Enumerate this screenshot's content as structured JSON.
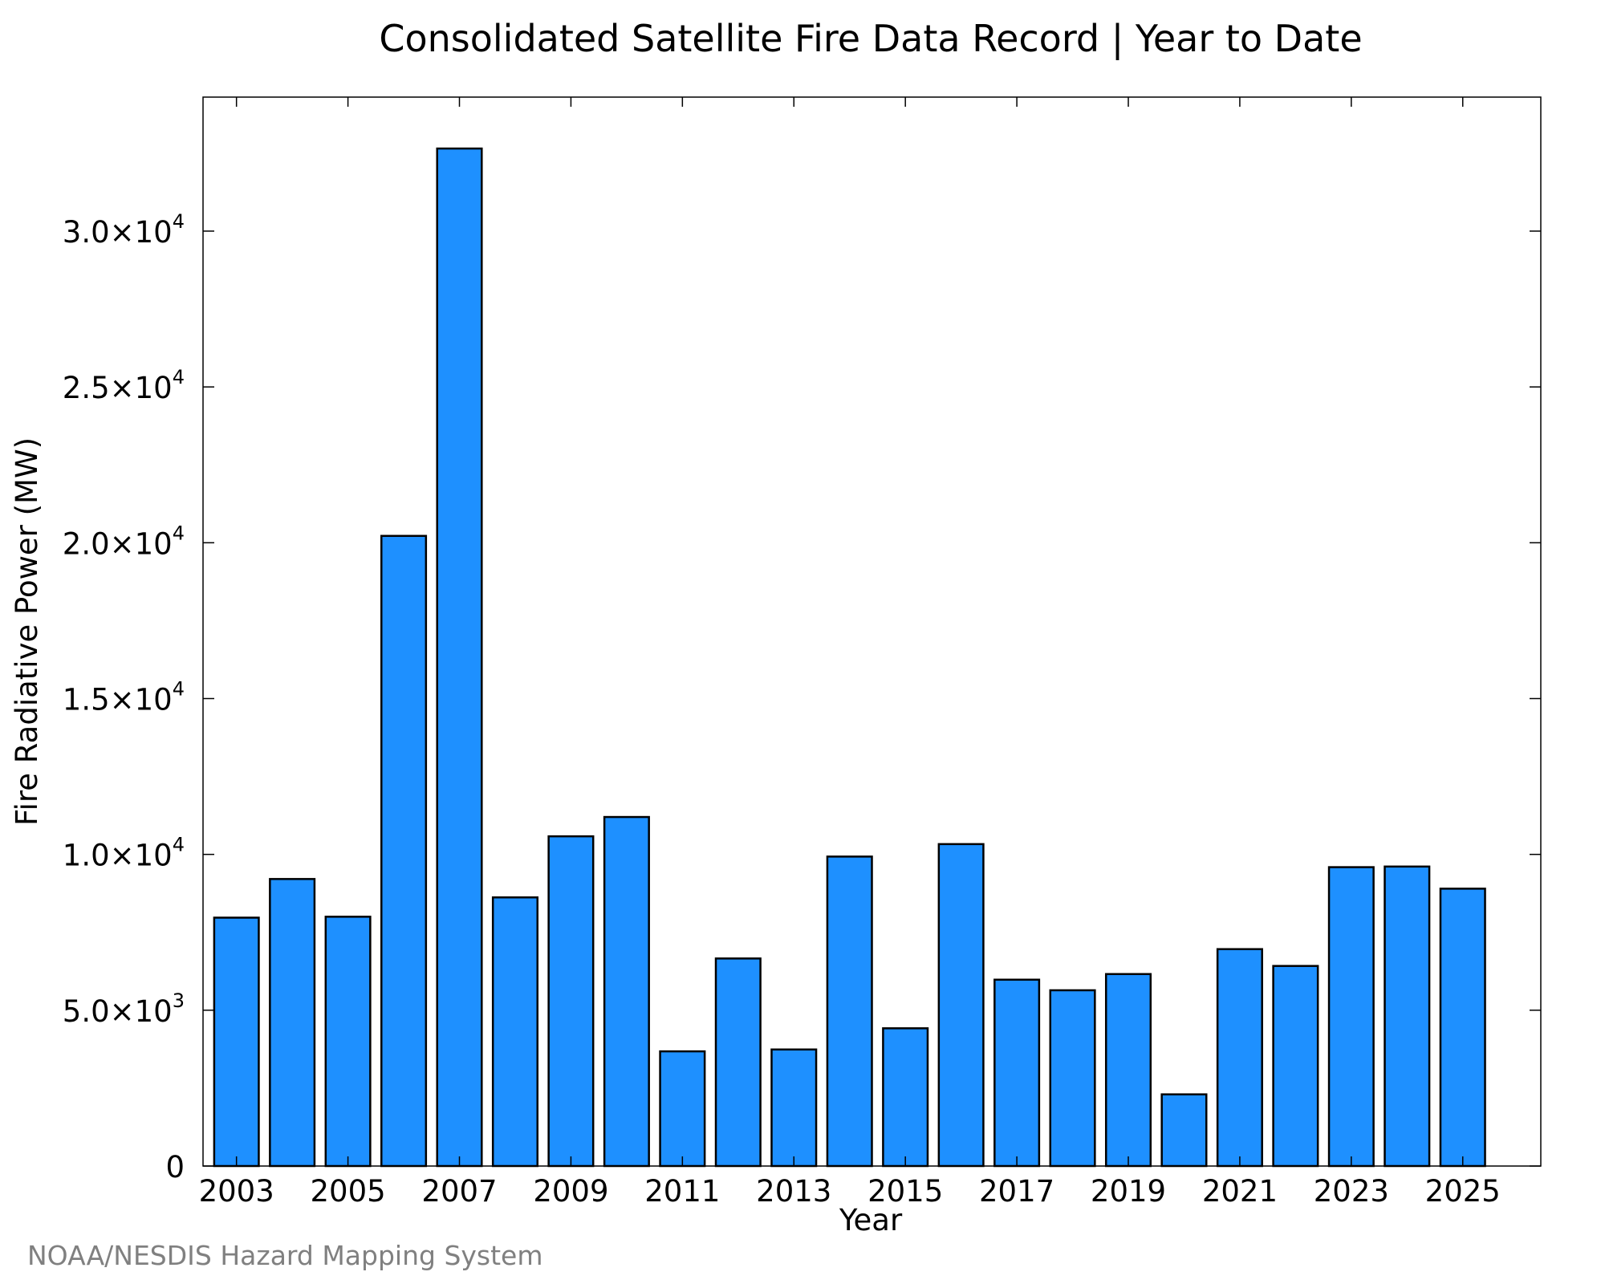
{
  "chart_data": {
    "type": "bar",
    "title": "Consolidated Satellite Fire Data Record | Year to Date",
    "xlabel": "Year",
    "ylabel": "Fire Radiative Power (MW)",
    "credit": "NOAA/NESDIS Hazard Mapping System",
    "categories": [
      "2003",
      "2004",
      "2005",
      "2006",
      "2007",
      "2008",
      "2009",
      "2010",
      "2011",
      "2012",
      "2013",
      "2014",
      "2015",
      "2016",
      "2017",
      "2018",
      "2019",
      "2020",
      "2021",
      "2022",
      "2023",
      "2024",
      "2025"
    ],
    "values": [
      7970,
      9210,
      8000,
      20220,
      32650,
      8620,
      10580,
      11200,
      3680,
      6660,
      3740,
      9930,
      4420,
      10330,
      5980,
      5640,
      6160,
      2300,
      6960,
      6420,
      9590,
      9610,
      8900
    ],
    "xticks": [
      "2003",
      "2005",
      "2007",
      "2009",
      "2011",
      "2013",
      "2015",
      "2017",
      "2019",
      "2021",
      "2023",
      "2025"
    ],
    "yticks": [
      {
        "value": 0,
        "mantissa": "0",
        "exponent": ""
      },
      {
        "value": 5000,
        "mantissa": "5.0×10",
        "exponent": "3"
      },
      {
        "value": 10000,
        "mantissa": "1.0×10",
        "exponent": "4"
      },
      {
        "value": 15000,
        "mantissa": "1.5×10",
        "exponent": "4"
      },
      {
        "value": 20000,
        "mantissa": "2.0×10",
        "exponent": "4"
      },
      {
        "value": 25000,
        "mantissa": "2.5×10",
        "exponent": "4"
      },
      {
        "value": 30000,
        "mantissa": "3.0×10",
        "exponent": "4"
      }
    ],
    "ylim": [
      0,
      34300
    ],
    "xlim": [
      2002.4,
      2026.4
    ],
    "bar_color": "#1e90ff",
    "edge_color": "#000000",
    "grid": false,
    "legend": "none"
  }
}
